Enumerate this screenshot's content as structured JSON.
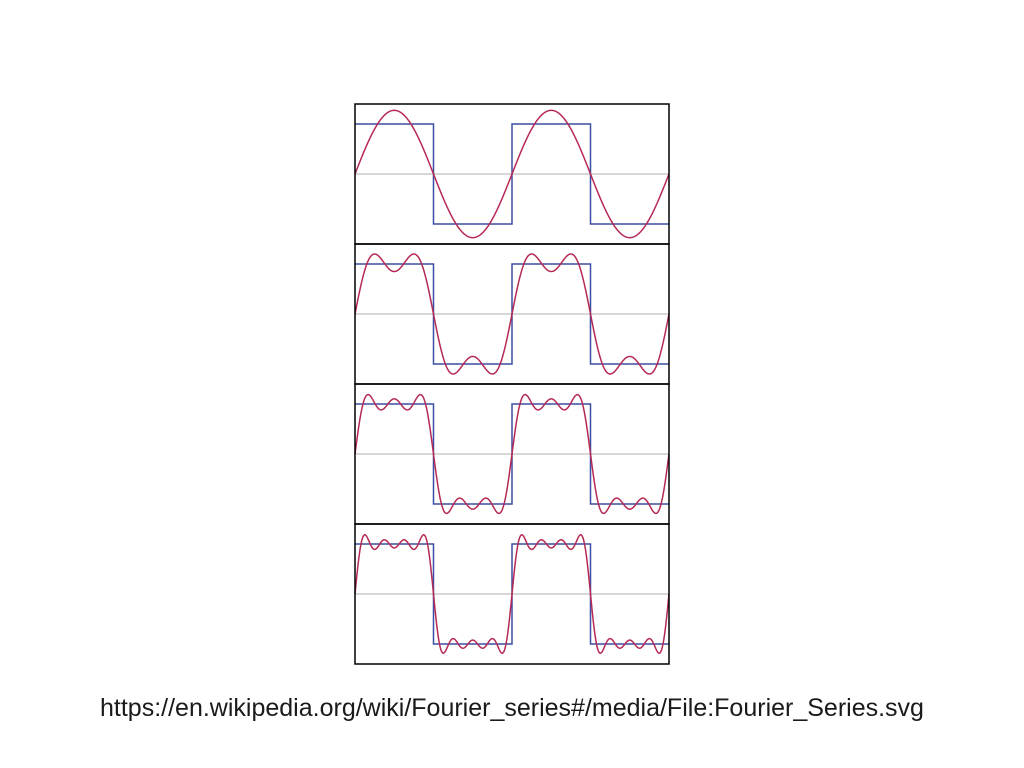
{
  "slide": {
    "caption": "https://en.wikipedia.org/wiki/Fourier_series#/media/File:Fourier_Series.svg"
  },
  "figure": {
    "panels": [
      {
        "harmonics": 1
      },
      {
        "harmonics": 2
      },
      {
        "harmonics": 3
      },
      {
        "harmonics": 4
      }
    ],
    "periods_shown": 2,
    "colors": {
      "square_wave": "#3b4fa3",
      "approximation": "#b52a55",
      "axis": "#bfbfbf",
      "frame": "#000000"
    }
  }
}
